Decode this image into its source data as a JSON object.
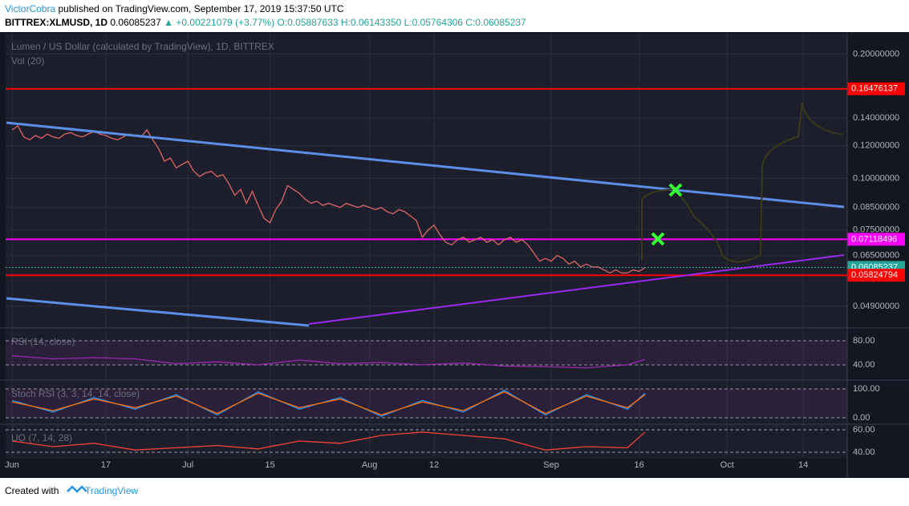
{
  "header": {
    "author": "VictorCobra",
    "published": "published on TradingView.com, September 17, 2019 15:37:50 UTC",
    "symbol": "BITTREX:XLMUSD, 1D",
    "last": "0.06085237",
    "change": "▲ +0.00221079 (+3.77%)",
    "ohlc": "O:0.05887633 H:0.06143350 L:0.05764306 C:0.06085237"
  },
  "footer": {
    "created": "Created with",
    "brand": "TradingView"
  },
  "chart_data": [
    {
      "type": "line",
      "title": "Lumen / US Dollar (calculated by TradingView), 1D, BITTREX",
      "subtitle": "Vol (20)",
      "log_scale": true,
      "color": "#e06666",
      "x": [
        0,
        1,
        2,
        3,
        4,
        5,
        6,
        7,
        8,
        9,
        10,
        11,
        12,
        13,
        14,
        15,
        16,
        17,
        18,
        19,
        20,
        21,
        22,
        23,
        24,
        25,
        26,
        27,
        28,
        29,
        30,
        31,
        32,
        33,
        34,
        35,
        36,
        37,
        38,
        39,
        40,
        41,
        42,
        43,
        44,
        45,
        46,
        47,
        48,
        49,
        50,
        51,
        52,
        53,
        54,
        55,
        56,
        57,
        58,
        59,
        60,
        61,
        62,
        63,
        64,
        65,
        66,
        67,
        68,
        69,
        70,
        71,
        72,
        73,
        74,
        75,
        76,
        77,
        78,
        79,
        80,
        81,
        82,
        83,
        84,
        85,
        86,
        87,
        88,
        89,
        90,
        91,
        92,
        93,
        94,
        95,
        96,
        97,
        98,
        99,
        100,
        101,
        102,
        103,
        104,
        105,
        106,
        107,
        108
      ],
      "values": [
        0.131,
        0.134,
        0.126,
        0.124,
        0.127,
        0.125,
        0.128,
        0.126,
        0.125,
        0.128,
        0.129,
        0.127,
        0.126,
        0.128,
        0.13,
        0.128,
        0.127,
        0.125,
        0.124,
        0.126,
        0.128,
        0.127,
        0.126,
        0.131,
        0.124,
        0.118,
        0.11,
        0.112,
        0.106,
        0.108,
        0.11,
        0.104,
        0.101,
        0.103,
        0.104,
        0.101,
        0.102,
        0.097,
        0.091,
        0.094,
        0.087,
        0.093,
        0.086,
        0.08,
        0.078,
        0.084,
        0.088,
        0.096,
        0.094,
        0.092,
        0.089,
        0.087,
        0.088,
        0.086,
        0.087,
        0.086,
        0.085,
        0.087,
        0.086,
        0.085,
        0.086,
        0.085,
        0.084,
        0.085,
        0.083,
        0.082,
        0.084,
        0.083,
        0.081,
        0.079,
        0.072,
        0.075,
        0.077,
        0.073,
        0.07,
        0.069,
        0.071,
        0.072,
        0.07,
        0.071,
        0.072,
        0.07,
        0.071,
        0.069,
        0.071,
        0.072,
        0.07,
        0.071,
        0.069,
        0.066,
        0.063,
        0.064,
        0.063,
        0.065,
        0.064,
        0.062,
        0.063,
        0.061,
        0.062,
        0.061,
        0.061,
        0.06,
        0.059,
        0.06,
        0.059,
        0.059,
        0.06,
        0.0595,
        0.0608
      ],
      "xlim": [
        -1.1,
        142.5
      ],
      "ylim": [
        0.0436,
        0.224
      ],
      "xticks": [
        {
          "value": 0,
          "label": "Jun"
        },
        {
          "value": 16,
          "label": "17"
        },
        {
          "value": 30,
          "label": "Jul"
        },
        {
          "value": 44,
          "label": "15"
        },
        {
          "value": 61,
          "label": "Aug"
        },
        {
          "value": 72,
          "label": "12"
        },
        {
          "value": 92,
          "label": "Sep"
        },
        {
          "value": 107,
          "label": "16"
        },
        {
          "value": 122,
          "label": "Oct"
        },
        {
          "value": 135,
          "label": "14"
        }
      ],
      "yticks": [
        {
          "value": 0.2,
          "label": "0.20000000"
        },
        {
          "value": 0.14,
          "label": "0.14000000"
        },
        {
          "value": 0.12,
          "label": "0.12000000"
        },
        {
          "value": 0.1,
          "label": "0.10000000"
        },
        {
          "value": 0.085,
          "label": "0.08500000"
        },
        {
          "value": 0.075,
          "label": "0.07500000"
        },
        {
          "value": 0.065,
          "label": "0.06500000"
        },
        {
          "value": 0.049,
          "label": "0.04900000"
        }
      ],
      "levels": [
        {
          "value": 0.16476137,
          "color": "#ff0000"
        },
        {
          "value": 0.07118496,
          "color": "#ff00ff"
        },
        {
          "value": 0.06085237,
          "color": "#26a69a"
        },
        {
          "value": 0.05824794,
          "color": "#ff0000"
        }
      ]
    },
    {
      "type": "line",
      "title": "RSI (14, close)",
      "x": [
        0,
        7,
        14,
        21,
        28,
        35,
        42,
        49,
        56,
        63,
        70,
        77,
        84,
        91,
        98,
        105,
        108
      ],
      "series": [
        {
          "color": "#9c27b0",
          "values": [
            55,
            50,
            52,
            50,
            42,
            45,
            40,
            48,
            42,
            44,
            40,
            43,
            38,
            37,
            35,
            40,
            49
          ]
        }
      ],
      "xlim": [
        -1.1,
        142.5
      ],
      "ylim": [
        17.3,
        100
      ],
      "yticks": [
        {
          "value": 80,
          "label": "80.00"
        },
        {
          "value": 40,
          "label": "40.00"
        }
      ]
    },
    {
      "type": "line",
      "title": "Stoch RSI (3, 3, 14, 14, close)",
      "x": [
        0,
        7,
        14,
        21,
        28,
        35,
        42,
        49,
        56,
        63,
        70,
        77,
        84,
        91,
        98,
        105,
        108
      ],
      "series": [
        {
          "color": "#2196f3",
          "values": [
            60,
            20,
            70,
            30,
            80,
            10,
            90,
            30,
            70,
            5,
            60,
            20,
            95,
            10,
            80,
            30,
            85
          ]
        },
        {
          "color": "#ff6d00",
          "values": [
            55,
            25,
            65,
            35,
            75,
            15,
            85,
            35,
            65,
            10,
            55,
            25,
            90,
            15,
            75,
            35,
            80
          ]
        }
      ],
      "xlim": [
        -1.1,
        142.5
      ],
      "ylim": [
        -19.4,
        127.8
      ],
      "yticks": [
        {
          "value": 100,
          "label": "100.00"
        },
        {
          "value": 0,
          "label": "0.00"
        }
      ]
    },
    {
      "type": "line",
      "title": "UO (7, 14, 28)",
      "x": [
        0,
        7,
        14,
        21,
        28,
        35,
        42,
        49,
        56,
        63,
        70,
        77,
        84,
        91,
        98,
        105,
        108
      ],
      "series": [
        {
          "color": "#f44336",
          "values": [
            50,
            45,
            48,
            42,
            44,
            46,
            43,
            50,
            48,
            55,
            58,
            55,
            52,
            42,
            45,
            44,
            58
          ]
        }
      ],
      "xlim": [
        -1.1,
        142.5
      ],
      "ylim": [
        35.7,
        64.3
      ],
      "yticks": [
        {
          "value": 60,
          "label": "60.00"
        },
        {
          "value": 40,
          "label": "40.00"
        }
      ]
    }
  ]
}
